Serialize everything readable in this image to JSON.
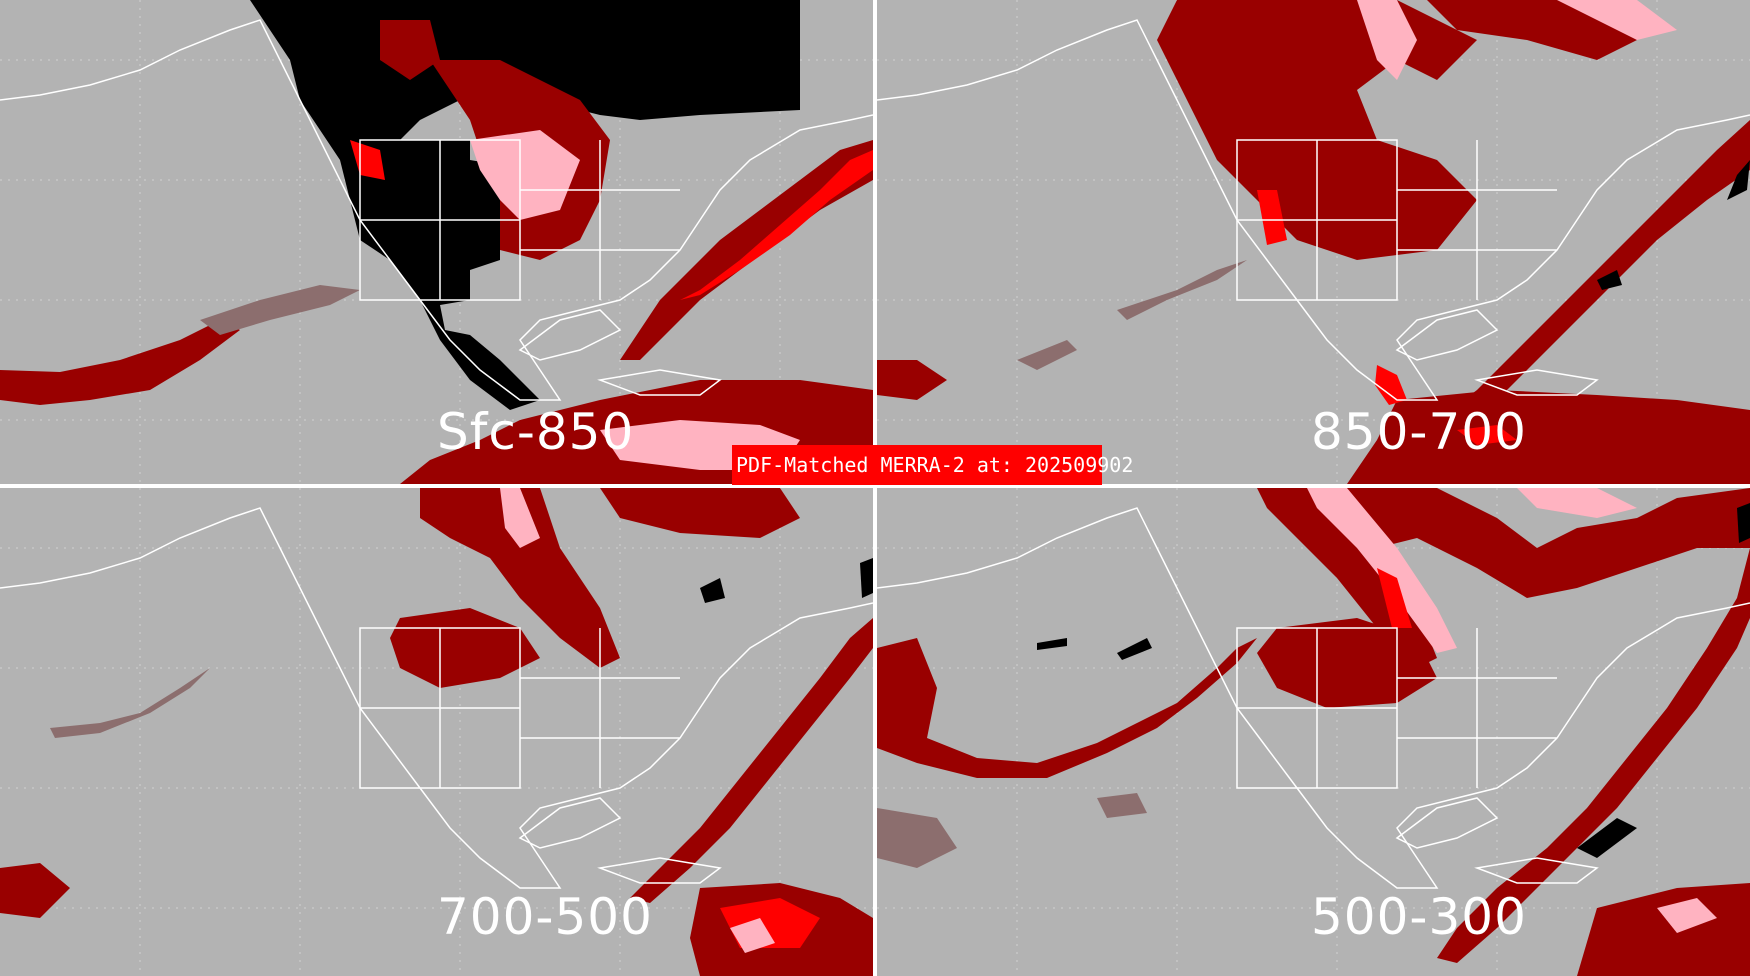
{
  "banner": {
    "text": "PDF-Matched MERRA-2 at: 202509902"
  },
  "panels": [
    {
      "id": "p1",
      "label": "Sfc-850"
    },
    {
      "id": "p2",
      "label": "850-700"
    },
    {
      "id": "p3",
      "label": "700-500"
    },
    {
      "id": "p4",
      "label": "500-300"
    }
  ],
  "colors": {
    "background": "#b3b3b3",
    "black": "#000000",
    "dark-red": "#990000",
    "red": "#ff0000",
    "pink": "#ffb3c1",
    "brown-gray": "#8c6e6e",
    "coastline": "#ffffff",
    "divider": "#ffffff"
  }
}
